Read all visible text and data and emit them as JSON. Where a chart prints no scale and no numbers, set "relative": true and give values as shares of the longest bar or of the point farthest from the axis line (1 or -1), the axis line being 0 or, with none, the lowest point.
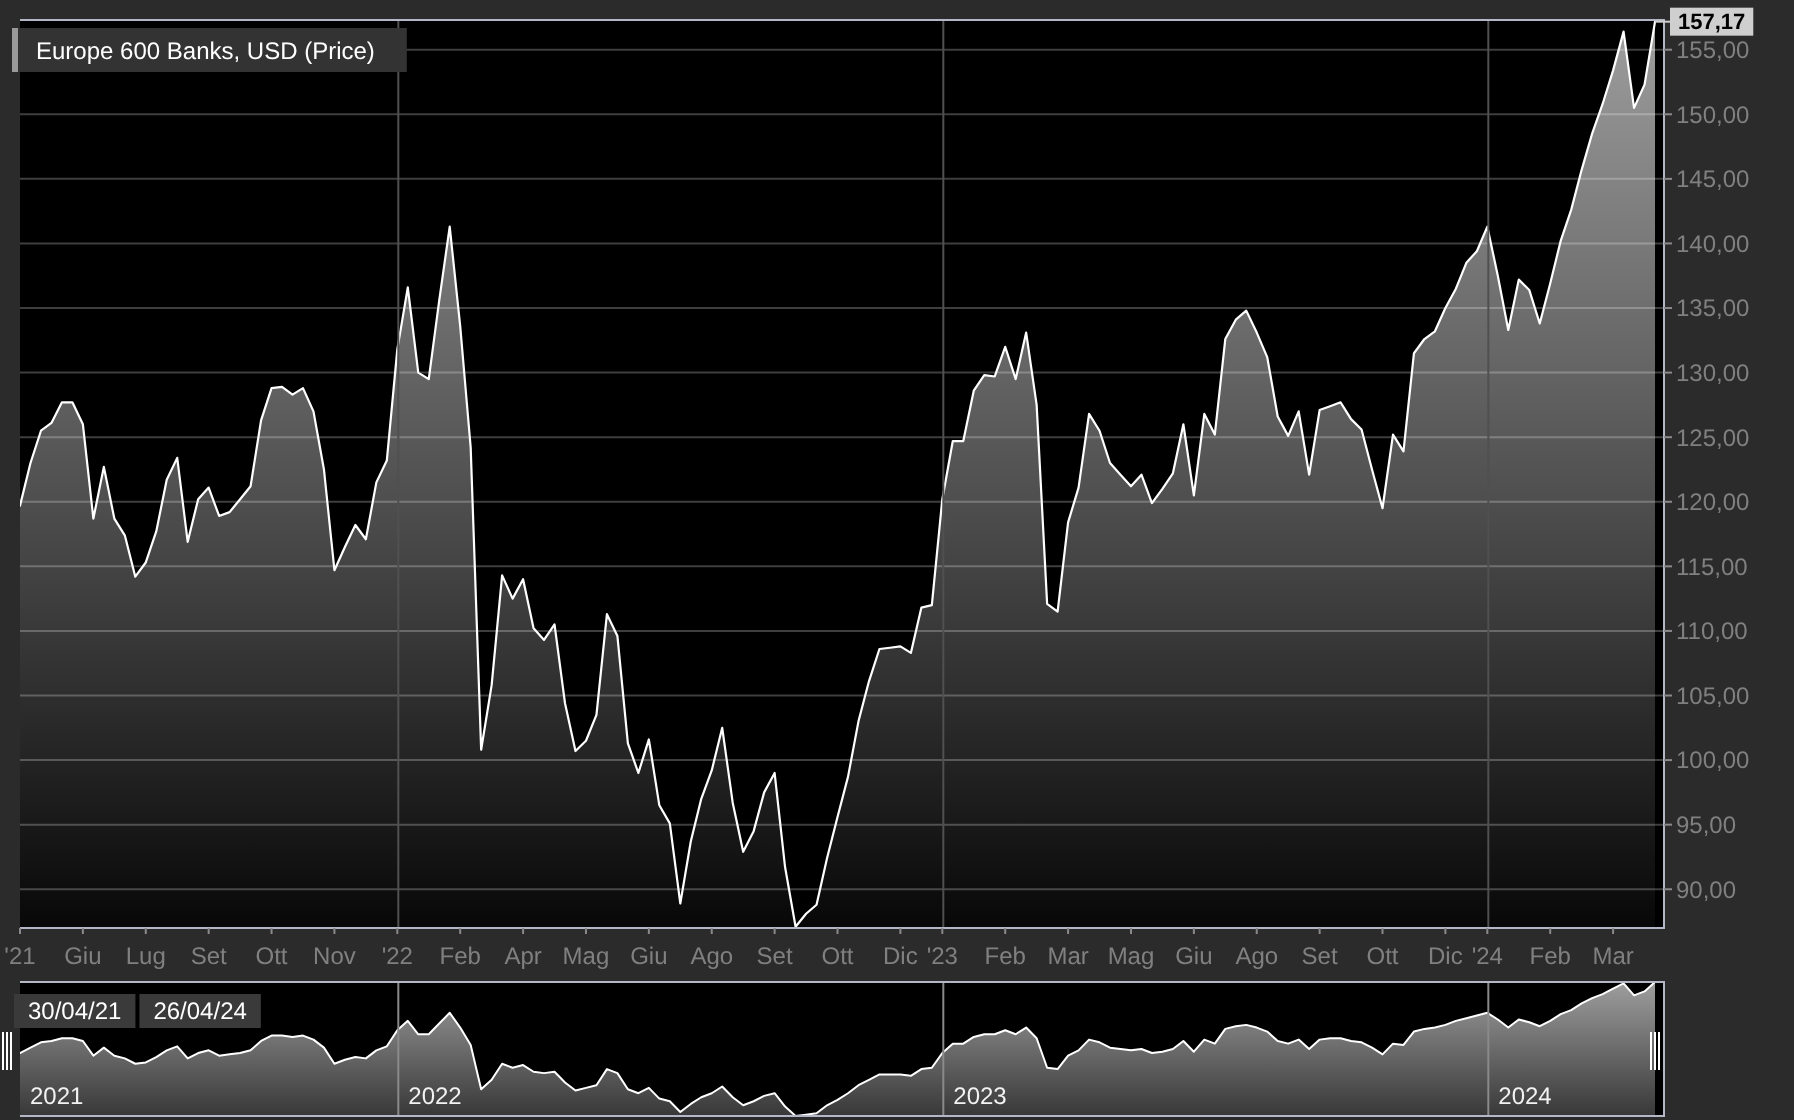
{
  "chart_data": [
    {
      "type": "area",
      "title": "Europe 600 Banks, USD (Price)",
      "x": [
        "2021-04-30",
        "2021-05-07",
        "2021-05-14",
        "2021-05-21",
        "2021-05-28",
        "2021-06-04",
        "2021-06-11",
        "2021-06-18",
        "2021-06-25",
        "2021-07-02",
        "2021-07-09",
        "2021-07-16",
        "2021-07-23",
        "2021-07-30",
        "2021-08-06",
        "2021-08-13",
        "2021-08-20",
        "2021-08-27",
        "2021-09-03",
        "2021-09-10",
        "2021-09-17",
        "2021-09-24",
        "2021-10-01",
        "2021-10-08",
        "2021-10-15",
        "2021-10-22",
        "2021-10-29",
        "2021-11-05",
        "2021-11-12",
        "2021-11-19",
        "2021-11-26",
        "2021-12-03",
        "2021-12-10",
        "2021-12-17",
        "2021-12-24",
        "2021-12-31",
        "2022-01-07",
        "2022-01-14",
        "2022-01-21",
        "2022-01-28",
        "2022-02-04",
        "2022-02-11",
        "2022-02-18",
        "2022-02-25",
        "2022-03-04",
        "2022-03-11",
        "2022-03-18",
        "2022-03-25",
        "2022-04-01",
        "2022-04-08",
        "2022-04-15",
        "2022-04-22",
        "2022-04-29",
        "2022-05-06",
        "2022-05-13",
        "2022-05-20",
        "2022-05-27",
        "2022-06-03",
        "2022-06-10",
        "2022-06-17",
        "2022-06-24",
        "2022-07-01",
        "2022-07-08",
        "2022-07-15",
        "2022-07-22",
        "2022-07-29",
        "2022-08-05",
        "2022-08-12",
        "2022-08-19",
        "2022-08-26",
        "2022-09-02",
        "2022-09-09",
        "2022-09-16",
        "2022-09-23",
        "2022-09-30",
        "2022-10-07",
        "2022-10-14",
        "2022-10-21",
        "2022-10-28",
        "2022-11-04",
        "2022-11-11",
        "2022-11-18",
        "2022-11-25",
        "2022-12-02",
        "2022-12-09",
        "2022-12-16",
        "2022-12-23",
        "2022-12-30",
        "2023-01-06",
        "2023-01-13",
        "2023-01-20",
        "2023-01-27",
        "2023-02-03",
        "2023-02-10",
        "2023-02-17",
        "2023-02-24",
        "2023-03-03",
        "2023-03-10",
        "2023-03-17",
        "2023-03-24",
        "2023-03-31",
        "2023-04-07",
        "2023-04-14",
        "2023-04-21",
        "2023-04-28",
        "2023-05-05",
        "2023-05-12",
        "2023-05-19",
        "2023-05-26",
        "2023-06-02",
        "2023-06-09",
        "2023-06-16",
        "2023-06-23",
        "2023-06-30",
        "2023-07-07",
        "2023-07-14",
        "2023-07-21",
        "2023-07-28",
        "2023-08-04",
        "2023-08-11",
        "2023-08-18",
        "2023-08-25",
        "2023-09-01",
        "2023-09-08",
        "2023-09-15",
        "2023-09-22",
        "2023-09-29",
        "2023-10-06",
        "2023-10-13",
        "2023-10-20",
        "2023-10-27",
        "2023-11-03",
        "2023-11-10",
        "2023-11-17",
        "2023-11-24",
        "2023-12-01",
        "2023-12-08",
        "2023-12-15",
        "2023-12-22",
        "2023-12-29",
        "2024-01-05",
        "2024-01-12",
        "2024-01-19",
        "2024-01-26",
        "2024-02-02",
        "2024-02-09",
        "2024-02-16",
        "2024-02-23",
        "2024-03-01",
        "2024-03-08",
        "2024-03-15",
        "2024-03-22",
        "2024-03-29",
        "2024-04-05",
        "2024-04-12",
        "2024-04-19",
        "2024-04-26"
      ],
      "series": [
        {
          "color": "#ffffff",
          "values": [
            119.7,
            123.0,
            125.5,
            126.1,
            127.7,
            127.7,
            126.0,
            118.7,
            122.7,
            118.7,
            117.4,
            114.2,
            115.3,
            117.7,
            121.7,
            123.4,
            116.9,
            120.2,
            121.1,
            118.9,
            119.2,
            120.2,
            121.2,
            126.3,
            128.8,
            128.9,
            128.3,
            128.8,
            127.0,
            122.5,
            114.7,
            116.5,
            118.2,
            117.1,
            121.5,
            123.2,
            131.8,
            136.6,
            130.0,
            129.5,
            135.6,
            141.3,
            133.6,
            124.2,
            100.8,
            105.8,
            114.3,
            112.5,
            114.0,
            110.2,
            109.3,
            110.5,
            104.4,
            100.7,
            101.5,
            103.5,
            111.3,
            109.6,
            101.3,
            99.0,
            101.6,
            96.5,
            95.1,
            88.9,
            93.7,
            97.0,
            99.2,
            102.5,
            96.7,
            92.9,
            94.5,
            97.5,
            99.0,
            91.7,
            87.1,
            88.1,
            88.8,
            92.4,
            95.6,
            98.7,
            103.0,
            106.1,
            108.6,
            108.7,
            108.8,
            108.3,
            111.8,
            112.0,
            120.2,
            124.7,
            124.7,
            128.6,
            129.8,
            129.7,
            132.0,
            129.5,
            133.1,
            127.5,
            112.1,
            111.5,
            118.4,
            121.1,
            126.8,
            125.5,
            123.0,
            122.1,
            121.2,
            122.1,
            119.9,
            121.0,
            122.2,
            126.0,
            120.5,
            126.8,
            125.2,
            132.6,
            134.1,
            134.8,
            133.1,
            131.2,
            126.6,
            125.1,
            127.0,
            122.1,
            127.1,
            127.4,
            127.7,
            126.4,
            125.6,
            122.5,
            119.5,
            125.2,
            123.9,
            131.5,
            132.6,
            133.2,
            135.0,
            136.5,
            138.5,
            139.4,
            141.3,
            137.5,
            133.3,
            137.2,
            136.4,
            133.8,
            136.9,
            140.2,
            142.6,
            145.7,
            148.5,
            150.8,
            153.4,
            156.4,
            150.5,
            152.3,
            157.17
          ]
        }
      ],
      "xlim": [
        "2021-04-30",
        "2024-05-02"
      ],
      "xticks": [
        {
          "value": "2021-04-30",
          "label": "'21"
        },
        {
          "value": "2021-06-11",
          "label": "Giu"
        },
        {
          "value": "2021-07-23",
          "label": "Lug"
        },
        {
          "value": "2021-09-03",
          "label": "Set"
        },
        {
          "value": "2021-10-15",
          "label": "Ott"
        },
        {
          "value": "2021-11-26",
          "label": "Nov"
        },
        {
          "value": "2022-01-07",
          "label": "'22"
        },
        {
          "value": "2022-02-18",
          "label": "Feb"
        },
        {
          "value": "2022-04-01",
          "label": "Apr"
        },
        {
          "value": "2022-05-13",
          "label": "Mag"
        },
        {
          "value": "2022-06-24",
          "label": "Giu"
        },
        {
          "value": "2022-08-05",
          "label": "Ago"
        },
        {
          "value": "2022-09-16",
          "label": "Set"
        },
        {
          "value": "2022-10-28",
          "label": "Ott"
        },
        {
          "value": "2022-12-09",
          "label": "Dic"
        },
        {
          "value": "2023-01-06",
          "label": "'23"
        },
        {
          "value": "2023-02-17",
          "label": "Feb"
        },
        {
          "value": "2023-03-31",
          "label": "Mar"
        },
        {
          "value": "2023-05-12",
          "label": "Mag"
        },
        {
          "value": "2023-06-23",
          "label": "Giu"
        },
        {
          "value": "2023-08-04",
          "label": "Ago"
        },
        {
          "value": "2023-09-15",
          "label": "Set"
        },
        {
          "value": "2023-10-27",
          "label": "Ott"
        },
        {
          "value": "2023-12-08",
          "label": "Dic"
        },
        {
          "value": "2024-01-05",
          "label": "'24"
        },
        {
          "value": "2024-02-16",
          "label": "Feb"
        },
        {
          "value": "2024-03-29",
          "label": "Mar"
        }
      ],
      "ylim": [
        87,
        157.3
      ],
      "yticks": [
        {
          "value": 90,
          "label": "90,00"
        },
        {
          "value": 95,
          "label": "95,00"
        },
        {
          "value": 100,
          "label": "100,00"
        },
        {
          "value": 105,
          "label": "105,00"
        },
        {
          "value": 110,
          "label": "110,00"
        },
        {
          "value": 115,
          "label": "115,00"
        },
        {
          "value": 120,
          "label": "120,00"
        },
        {
          "value": 125,
          "label": "125,00"
        },
        {
          "value": 130,
          "label": "130,00"
        },
        {
          "value": 135,
          "label": "135,00"
        },
        {
          "value": 140,
          "label": "140,00"
        },
        {
          "value": 145,
          "label": "145,00"
        },
        {
          "value": 150,
          "label": "150,00"
        },
        {
          "value": 155,
          "label": "155,00"
        }
      ],
      "grid": "y",
      "ref_lines": [
        {
          "axis": "x",
          "value": "2022-01-07",
          "color": "#505050"
        },
        {
          "axis": "x",
          "value": "2023-01-06",
          "color": "#505050"
        },
        {
          "axis": "x",
          "value": "2024-01-05",
          "color": "#505050"
        }
      ],
      "annotations": [
        {
          "text": "157,17",
          "x": "2024-04-26",
          "y": 157.17
        }
      ]
    },
    {
      "type": "area",
      "relative": true,
      "x": [
        "2021-04-30",
        "2021-05-07",
        "2021-05-14",
        "2021-05-21",
        "2021-05-28",
        "2021-06-04",
        "2021-06-11",
        "2021-06-18",
        "2021-06-25",
        "2021-07-02",
        "2021-07-09",
        "2021-07-16",
        "2021-07-23",
        "2021-07-30",
        "2021-08-06",
        "2021-08-13",
        "2021-08-20",
        "2021-08-27",
        "2021-09-03",
        "2021-09-10",
        "2021-09-17",
        "2021-09-24",
        "2021-10-01",
        "2021-10-08",
        "2021-10-15",
        "2021-10-22",
        "2021-10-29",
        "2021-11-05",
        "2021-11-12",
        "2021-11-19",
        "2021-11-26",
        "2021-12-03",
        "2021-12-10",
        "2021-12-17",
        "2021-12-24",
        "2021-12-31",
        "2022-01-07",
        "2022-01-14",
        "2022-01-21",
        "2022-01-28",
        "2022-02-04",
        "2022-02-11",
        "2022-02-18",
        "2022-02-25",
        "2022-03-04",
        "2022-03-11",
        "2022-03-18",
        "2022-03-25",
        "2022-04-01",
        "2022-04-08",
        "2022-04-15",
        "2022-04-22",
        "2022-04-29",
        "2022-05-06",
        "2022-05-13",
        "2022-05-20",
        "2022-05-27",
        "2022-06-03",
        "2022-06-10",
        "2022-06-17",
        "2022-06-24",
        "2022-07-01",
        "2022-07-08",
        "2022-07-15",
        "2022-07-22",
        "2022-07-29",
        "2022-08-05",
        "2022-08-12",
        "2022-08-19",
        "2022-08-26",
        "2022-09-02",
        "2022-09-09",
        "2022-09-16",
        "2022-09-23",
        "2022-09-30",
        "2022-10-07",
        "2022-10-14",
        "2022-10-21",
        "2022-10-28",
        "2022-11-04",
        "2022-11-11",
        "2022-11-18",
        "2022-11-25",
        "2022-12-02",
        "2022-12-09",
        "2022-12-16",
        "2022-12-23",
        "2022-12-30",
        "2023-01-06",
        "2023-01-13",
        "2023-01-20",
        "2023-01-27",
        "2023-02-03",
        "2023-02-10",
        "2023-02-17",
        "2023-02-24",
        "2023-03-03",
        "2023-03-10",
        "2023-03-17",
        "2023-03-24",
        "2023-03-31",
        "2023-04-07",
        "2023-04-14",
        "2023-04-21",
        "2023-04-28",
        "2023-05-05",
        "2023-05-12",
        "2023-05-19",
        "2023-05-26",
        "2023-06-02",
        "2023-06-09",
        "2023-06-16",
        "2023-06-23",
        "2023-06-30",
        "2023-07-07",
        "2023-07-14",
        "2023-07-21",
        "2023-07-28",
        "2023-08-04",
        "2023-08-11",
        "2023-08-18",
        "2023-08-25",
        "2023-09-01",
        "2023-09-08",
        "2023-09-15",
        "2023-09-22",
        "2023-09-29",
        "2023-10-06",
        "2023-10-13",
        "2023-10-20",
        "2023-10-27",
        "2023-11-03",
        "2023-11-10",
        "2023-11-17",
        "2023-11-24",
        "2023-12-01",
        "2023-12-08",
        "2023-12-15",
        "2023-12-22",
        "2023-12-29",
        "2024-01-05",
        "2024-01-12",
        "2024-01-19",
        "2024-01-26",
        "2024-02-02",
        "2024-02-09",
        "2024-02-16",
        "2024-02-23",
        "2024-03-01",
        "2024-03-08",
        "2024-03-15",
        "2024-03-22",
        "2024-03-29",
        "2024-04-05",
        "2024-04-12",
        "2024-04-19",
        "2024-04-26"
      ],
      "series": [
        {
          "color": "#ffffff",
          "values": [
            0.47,
            0.51,
            0.55,
            0.56,
            0.58,
            0.58,
            0.56,
            0.45,
            0.51,
            0.45,
            0.43,
            0.39,
            0.4,
            0.44,
            0.49,
            0.52,
            0.43,
            0.47,
            0.49,
            0.45,
            0.46,
            0.47,
            0.49,
            0.56,
            0.6,
            0.6,
            0.59,
            0.6,
            0.57,
            0.51,
            0.39,
            0.42,
            0.44,
            0.43,
            0.49,
            0.52,
            0.64,
            0.71,
            0.61,
            0.61,
            0.69,
            0.77,
            0.66,
            0.53,
            0.2,
            0.27,
            0.39,
            0.36,
            0.38,
            0.33,
            0.32,
            0.33,
            0.25,
            0.19,
            0.21,
            0.23,
            0.35,
            0.32,
            0.2,
            0.17,
            0.21,
            0.13,
            0.11,
            0.03,
            0.09,
            0.14,
            0.17,
            0.22,
            0.14,
            0.08,
            0.11,
            0.15,
            0.17,
            0.07,
            0,
            0.01,
            0.02,
            0.08,
            0.12,
            0.17,
            0.23,
            0.27,
            0.31,
            0.31,
            0.31,
            0.3,
            0.35,
            0.36,
            0.47,
            0.54,
            0.54,
            0.59,
            0.61,
            0.61,
            0.64,
            0.61,
            0.66,
            0.58,
            0.36,
            0.35,
            0.45,
            0.49,
            0.57,
            0.55,
            0.51,
            0.5,
            0.49,
            0.5,
            0.47,
            0.48,
            0.5,
            0.56,
            0.48,
            0.57,
            0.54,
            0.65,
            0.67,
            0.68,
            0.66,
            0.63,
            0.56,
            0.54,
            0.57,
            0.5,
            0.57,
            0.58,
            0.58,
            0.56,
            0.55,
            0.51,
            0.46,
            0.54,
            0.53,
            0.63,
            0.65,
            0.66,
            0.68,
            0.71,
            0.73,
            0.75,
            0.77,
            0.72,
            0.66,
            0.72,
            0.7,
            0.67,
            0.71,
            0.76,
            0.79,
            0.84,
            0.88,
            0.91,
            0.95,
            0.99,
            0.9,
            0.93,
            1
          ]
        }
      ],
      "xlim": [
        "2021-04-30",
        "2024-05-02"
      ],
      "ref_lines": [
        {
          "axis": "x",
          "value": "2022-01-07",
          "label": "2022",
          "color": "#8a8a8a"
        },
        {
          "axis": "x",
          "value": "2023-01-06",
          "label": "2023",
          "color": "#8a8a8a"
        },
        {
          "axis": "x",
          "value": "2024-01-05",
          "label": "2024",
          "color": "#8a8a8a"
        }
      ],
      "annotations": [
        "30/04/21",
        "26/04/24",
        {
          "text": "2021",
          "x": "2021-04-30",
          "y": 0
        }
      ]
    }
  ]
}
